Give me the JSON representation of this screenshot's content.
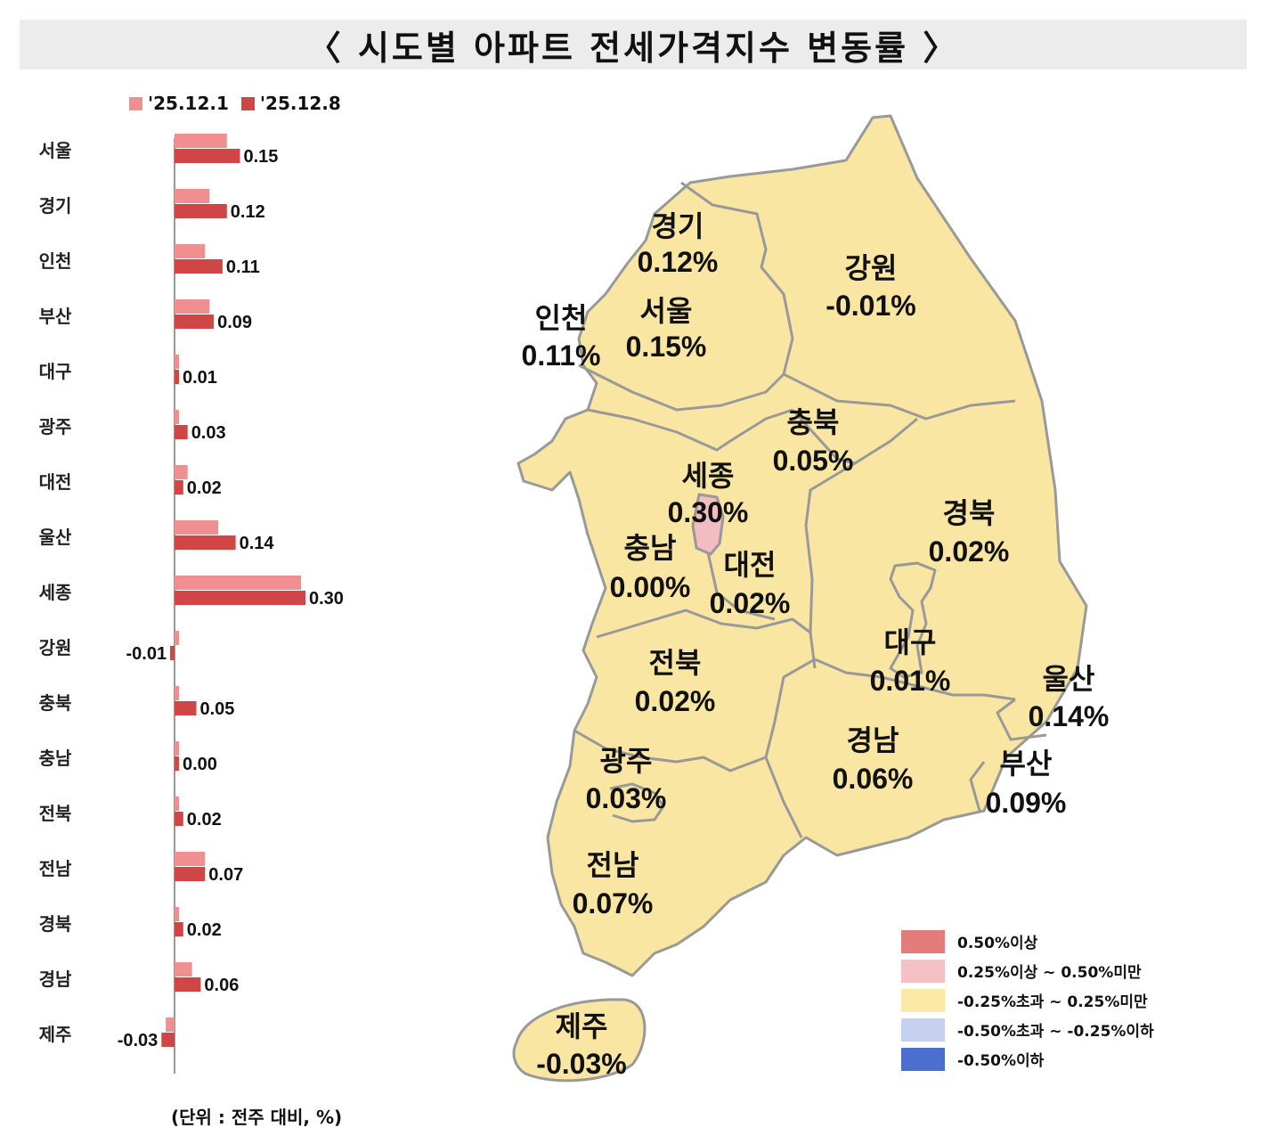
{
  "title": "〈 시도별 아파트 전세가격지수 변동률 〉",
  "legend": [
    {
      "label": "'25.12.1",
      "color": "#ef8f8f"
    },
    {
      "label": "'25.12.8",
      "color": "#d04545"
    }
  ],
  "unit_note": "(단위 : 전주 대비, %)",
  "chart_data": {
    "type": "bar",
    "orientation": "horizontal",
    "categories": [
      "서울",
      "경기",
      "인천",
      "부산",
      "대구",
      "광주",
      "대전",
      "울산",
      "세종",
      "강원",
      "충북",
      "충남",
      "전북",
      "전남",
      "경북",
      "경남",
      "제주"
    ],
    "series": [
      {
        "name": "'25.12.1",
        "values": [
          0.12,
          0.08,
          0.07,
          0.08,
          0.01,
          0.01,
          0.03,
          0.1,
          0.29,
          0.01,
          0.01,
          0.01,
          0.01,
          0.07,
          0.01,
          0.04,
          -0.02
        ]
      },
      {
        "name": "'25.12.8",
        "values": [
          0.15,
          0.12,
          0.11,
          0.09,
          0.01,
          0.03,
          0.02,
          0.14,
          0.3,
          -0.01,
          0.05,
          0.0,
          0.02,
          0.07,
          0.02,
          0.06,
          -0.03
        ]
      }
    ],
    "value_labels": [
      "0.15",
      "0.12",
      "0.11",
      "0.09",
      "0.01",
      "0.03",
      "0.02",
      "0.14",
      "0.30",
      "-0.01",
      "0.05",
      "0.00",
      "0.02",
      "0.07",
      "0.02",
      "0.06",
      "-0.03"
    ]
  },
  "map": {
    "regions": [
      {
        "name": "경기",
        "value": "0.12%"
      },
      {
        "name": "강원",
        "value": "-0.01%"
      },
      {
        "name": "인천",
        "value": "0.11%"
      },
      {
        "name": "서울",
        "value": "0.15%"
      },
      {
        "name": "충북",
        "value": "0.05%"
      },
      {
        "name": "세종",
        "value": "0.30%"
      },
      {
        "name": "충남",
        "value": "0.00%"
      },
      {
        "name": "대전",
        "value": "0.02%"
      },
      {
        "name": "경북",
        "value": "0.02%"
      },
      {
        "name": "대구",
        "value": "0.01%"
      },
      {
        "name": "울산",
        "value": "0.14%"
      },
      {
        "name": "전북",
        "value": "0.02%"
      },
      {
        "name": "경남",
        "value": "0.06%"
      },
      {
        "name": "부산",
        "value": "0.09%"
      },
      {
        "name": "광주",
        "value": "0.03%"
      },
      {
        "name": "전남",
        "value": "0.07%"
      },
      {
        "name": "제주",
        "value": "-0.03%"
      }
    ],
    "fill_default": "#f9e6a2",
    "fill_sejong": "#f2bcc0",
    "border_color": "#999999",
    "legend": [
      {
        "label": "0.50%이상",
        "color": "#e47c7c"
      },
      {
        "label": "0.25%이상 ~ 0.50%미만",
        "color": "#f4c0c3"
      },
      {
        "label": "-0.25%초과 ~ 0.25%미만",
        "color": "#fbe9a6"
      },
      {
        "label": "-0.50%초과 ~ -0.25%이하",
        "color": "#c5d1ef"
      },
      {
        "label": "-0.50%이하",
        "color": "#4a6fcf"
      }
    ]
  }
}
